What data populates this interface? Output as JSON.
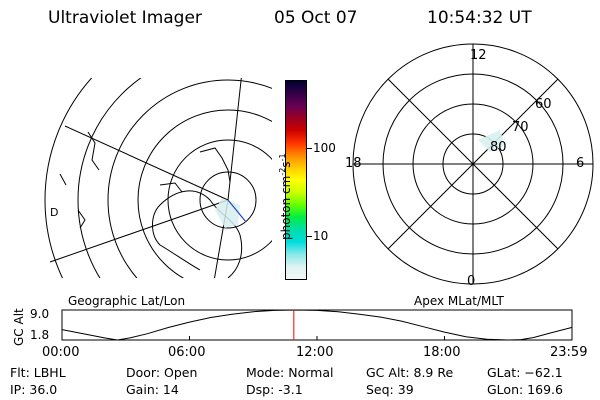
{
  "header": {
    "title": "Ultraviolet Imager",
    "date": "05 Oct 07",
    "time": "10:54:32 UT"
  },
  "left_panel": {
    "label": "Geographic Lat/Lon"
  },
  "right_panel": {
    "label": "Apex MLat/MLT",
    "mlt_labels": [
      "12",
      "18",
      "6",
      "0"
    ],
    "lat_labels": [
      "60",
      "70",
      "80"
    ]
  },
  "colorbar": {
    "unit_label": "photon cm",
    "unit_exp1": "-2",
    "unit_s": "s",
    "unit_exp2": "-1",
    "tick_labels": [
      "100",
      "10"
    ],
    "colors": [
      "#000033",
      "#330044",
      "#660055",
      "#990022",
      "#cc0000",
      "#ff3300",
      "#ff8800",
      "#ffcc00",
      "#ffff00",
      "#ccff00",
      "#66ff00",
      "#00ee44",
      "#00ddaa",
      "#00dddd",
      "#88e8e8",
      "#dff3f3",
      "#f2f8f8"
    ]
  },
  "orbit_plot": {
    "ylabel": "GC Alt",
    "ytick_labels": [
      "9.0",
      "1.8"
    ],
    "xtick_labels": [
      "00:00",
      "06:00",
      "12:00",
      "18:00",
      "23:59"
    ]
  },
  "chart_data": {
    "type": "line",
    "title": "",
    "xlabel": "",
    "ylabel": "GC Alt",
    "xlim": [
      0,
      24
    ],
    "ylim": [
      1.8,
      9.0
    ],
    "current_time_hours": 10.909,
    "series": [
      {
        "x": [
          0,
          1,
          2,
          2.6,
          3.2,
          4,
          5,
          6,
          7,
          8,
          9,
          10,
          11,
          12,
          13,
          14,
          15,
          16,
          17,
          18,
          19,
          20,
          21,
          21.6,
          22.2,
          23,
          23.98
        ],
        "values": [
          4.3,
          3.3,
          2.3,
          1.8,
          2.3,
          3.3,
          4.8,
          6.1,
          7.2,
          8.0,
          8.6,
          8.9,
          9.0,
          8.9,
          8.6,
          8.0,
          7.3,
          6.3,
          5.0,
          3.7,
          2.6,
          2.0,
          1.8,
          1.9,
          2.4,
          3.5,
          4.8
        ]
      }
    ]
  },
  "info": {
    "filter": "Flt: LBHL",
    "ip": "IP: 36.0",
    "door": "Door: Open",
    "gain": "Gain: 14",
    "mode": "Mode: Normal",
    "dsp": "Dsp:    -3.1",
    "gc_alt": "GC Alt: 8.9 Re",
    "seq": "Seq: 39",
    "glat": "GLat: −62.1",
    "glon": "GLon: 169.6"
  }
}
